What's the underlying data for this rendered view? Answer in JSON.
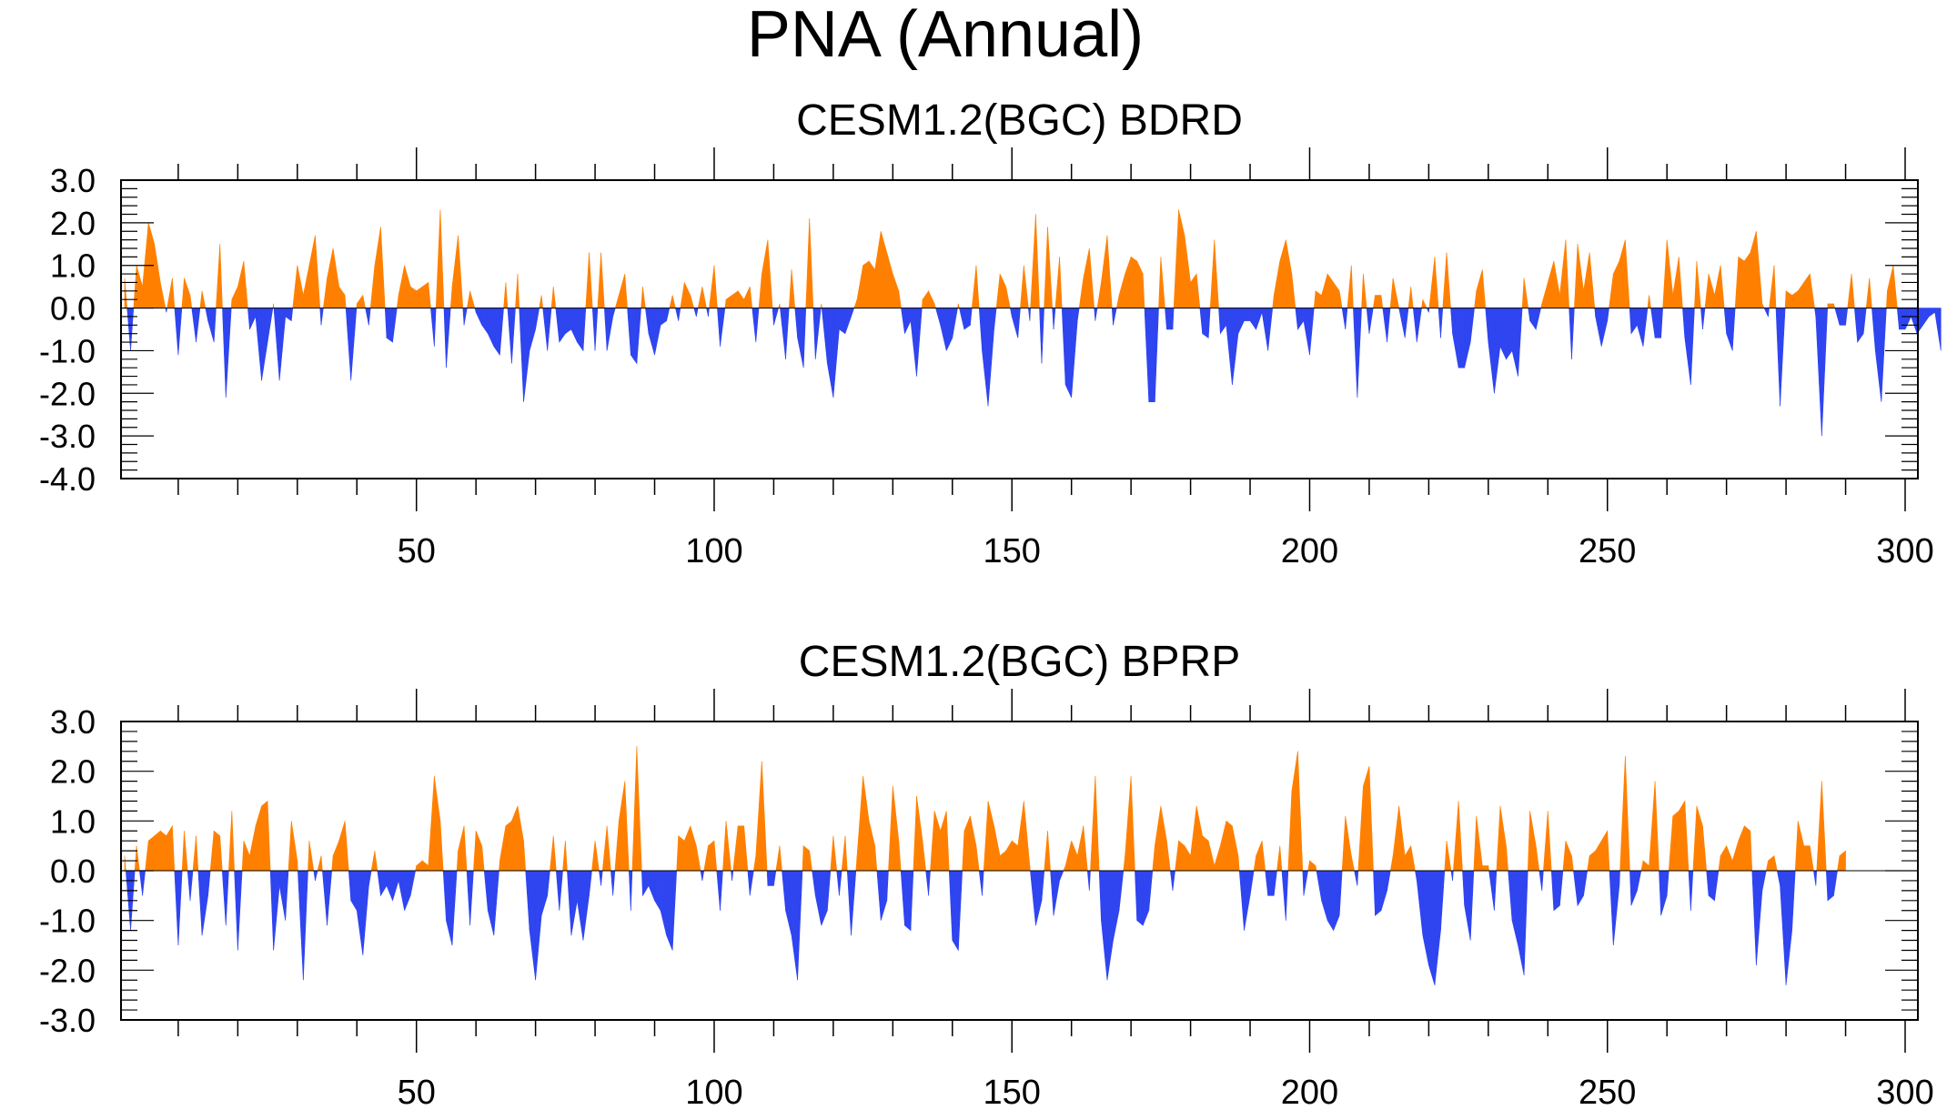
{
  "title": "PNA (Annual)",
  "colors": {
    "positive": "#ff8000",
    "negative": "#2f45f0",
    "axis": "#000000"
  },
  "chart_data": [
    {
      "type": "area",
      "title": "CESM1.2(BGC) BDRD",
      "xlim": [
        1,
        300
      ],
      "ylim": [
        -4.0,
        3.0
      ],
      "xticks": [
        50,
        100,
        150,
        200,
        250,
        300
      ],
      "xtick_labels": [
        "50",
        "100",
        "150",
        "200",
        "250",
        "300"
      ],
      "yticks": [
        3.0,
        2.0,
        1.0,
        0.0,
        -1.0,
        -2.0,
        -3.0,
        -4.0
      ],
      "ytick_labels": [
        "3.0",
        "2.0",
        "1.0",
        "0.0",
        "-1.0",
        "-2.0",
        "-3.0",
        "-4.0"
      ],
      "y": [
        0.7,
        -1.0,
        1.0,
        0.5,
        2.0,
        1.5,
        0.6,
        -0.1,
        0.7,
        -1.1,
        0.7,
        0.3,
        -0.8,
        0.4,
        -0.3,
        -0.8,
        1.5,
        -2.1,
        0.2,
        0.5,
        1.1,
        -0.5,
        -0.2,
        -1.7,
        -0.8,
        0.1,
        -1.7,
        -0.2,
        -0.3,
        1.0,
        0.3,
        1.0,
        1.7,
        -0.4,
        0.7,
        1.4,
        0.5,
        0.3,
        -1.7,
        0.1,
        0.3,
        -0.4,
        1.0,
        1.9,
        -0.7,
        -0.8,
        0.3,
        1.0,
        0.5,
        0.4,
        0.5,
        0.6,
        -0.9,
        2.3,
        -1.4,
        0.5,
        1.7,
        -0.4,
        0.4,
        -0.1,
        -0.4,
        -0.6,
        -0.9,
        -1.1,
        0.6,
        -1.3,
        0.8,
        -2.2,
        -1.0,
        -0.5,
        0.3,
        -1.0,
        0.5,
        -0.8,
        -0.6,
        -0.5,
        -0.8,
        -1.0,
        1.3,
        -1.0,
        1.3,
        -1.0,
        -0.2,
        0.3,
        0.8,
        -1.1,
        -1.3,
        0.5,
        -0.6,
        -1.1,
        -0.4,
        -0.3,
        0.3,
        -0.3,
        0.6,
        0.3,
        -0.2,
        0.5,
        -0.2,
        1.0,
        -0.9,
        0.2,
        0.3,
        0.4,
        0.2,
        0.5,
        -0.8,
        0.8,
        1.6,
        -0.4,
        0.1,
        -1.2,
        0.9,
        -0.7,
        -1.4,
        2.1,
        -1.2,
        0.1,
        -1.3,
        -2.1,
        -0.5,
        -0.6,
        -0.2,
        0.2,
        1.0,
        1.1,
        0.9,
        1.8,
        1.3,
        0.8,
        0.4,
        -0.6,
        -0.3,
        -1.6,
        0.2,
        0.4,
        0.1,
        -0.4,
        -1.0,
        -0.7,
        0.1,
        -0.5,
        -0.4,
        1.0,
        -1.0,
        -2.3,
        -0.5,
        0.8,
        0.5,
        -0.2,
        -0.7,
        1.0,
        -0.3,
        2.2,
        -1.3,
        1.9,
        -0.5,
        1.2,
        -1.8,
        -2.1,
        -0.3,
        0.7,
        1.4,
        -0.3,
        0.6,
        1.7,
        -0.4,
        0.3,
        0.8,
        1.2,
        1.1,
        0.8,
        -2.2,
        -2.2,
        1.2,
        -0.5,
        -0.5,
        2.3,
        1.7,
        0.6,
        0.8,
        -0.6,
        -0.7,
        1.6,
        -0.6,
        -0.4,
        -1.8,
        -0.6,
        -0.3,
        -0.3,
        -0.5,
        -0.1,
        -1.0,
        0.3,
        1.1,
        1.6,
        0.8,
        -0.5,
        -0.3,
        -1.1,
        0.4,
        0.3,
        0.8,
        0.6,
        0.4,
        -0.5,
        1.0,
        -2.1,
        0.8,
        -0.6,
        0.3,
        0.3,
        -0.8,
        0.7,
        0.0,
        -0.7,
        0.5,
        -0.8,
        0.2,
        -0.1,
        1.2,
        -0.7,
        1.3,
        -0.6,
        -1.4,
        -1.4,
        -0.8,
        0.4,
        0.9,
        -0.8,
        -2.0,
        -0.9,
        -1.2,
        -1.0,
        -1.6,
        0.7,
        -0.3,
        -0.5,
        0.1,
        0.6,
        1.1,
        0.3,
        1.6,
        -1.2,
        1.5,
        0.4,
        1.3,
        -0.2,
        -0.9,
        -0.3,
        0.8,
        1.1,
        1.6,
        -0.6,
        -0.4,
        -0.9,
        0.3,
        -0.7,
        -0.7,
        1.6,
        0.3,
        1.2,
        -0.7,
        -1.8,
        1.1,
        -0.5,
        0.8,
        0.3,
        1.0,
        -0.6,
        -1.0,
        1.2,
        1.1,
        1.3,
        1.8,
        0.1,
        -0.2,
        1.0,
        -2.3,
        0.4,
        0.3,
        0.4,
        0.6,
        0.8,
        -0.2,
        -3.0,
        0.1,
        0.1,
        -0.4,
        -0.4,
        0.8,
        -0.8,
        -0.6,
        0.7,
        -1.0,
        -2.2,
        0.4,
        1.0,
        -0.5,
        -0.5,
        -0.2,
        -0.6,
        -0.4,
        -0.2,
        -0.1,
        -1.0
      ]
    },
    {
      "type": "area",
      "title": "CESM1.2(BGC) BPRP",
      "xlim": [
        1,
        300
      ],
      "ylim": [
        -3.0,
        3.0
      ],
      "xticks": [
        50,
        100,
        150,
        200,
        250,
        300
      ],
      "xtick_labels": [
        "50",
        "100",
        "150",
        "200",
        "250",
        "300"
      ],
      "yticks": [
        3.0,
        2.0,
        1.0,
        0.0,
        -1.0,
        -2.0,
        -3.0
      ],
      "ytick_labels": [
        "3.0",
        "2.0",
        "1.0",
        "0.0",
        "-1.0",
        "-2.0",
        "-3.0"
      ],
      "y": [
        0.3,
        -1.2,
        0.5,
        -0.5,
        0.6,
        0.7,
        0.8,
        0.7,
        0.9,
        -1.5,
        0.8,
        -0.6,
        0.7,
        -1.3,
        -0.5,
        0.8,
        0.7,
        -1.1,
        1.2,
        -1.6,
        0.6,
        0.3,
        0.9,
        1.3,
        1.4,
        -1.6,
        -0.3,
        -1.0,
        1.0,
        0.2,
        -2.2,
        0.6,
        -0.2,
        0.3,
        -1.1,
        0.3,
        0.6,
        1.0,
        -0.6,
        -0.8,
        -1.7,
        -0.3,
        0.4,
        -0.5,
        -0.3,
        -0.6,
        -0.2,
        -0.8,
        -0.5,
        0.1,
        0.2,
        0.1,
        1.9,
        1.0,
        -1.0,
        -1.5,
        0.4,
        0.9,
        -1.1,
        0.8,
        0.5,
        -0.8,
        -1.3,
        0.2,
        0.9,
        1.0,
        1.3,
        0.6,
        -1.2,
        -2.2,
        -0.9,
        -0.5,
        0.7,
        -0.8,
        0.6,
        -1.3,
        -0.6,
        -1.4,
        -0.5,
        0.6,
        -0.3,
        0.9,
        -0.5,
        1.0,
        1.8,
        -0.8,
        2.5,
        -0.5,
        -0.3,
        -0.6,
        -0.8,
        -1.3,
        -1.6,
        0.7,
        0.6,
        0.9,
        0.5,
        -0.2,
        0.5,
        0.6,
        -0.8,
        1.0,
        -0.2,
        0.9,
        0.9,
        -0.5,
        0.3,
        2.2,
        -0.3,
        -0.3,
        0.5,
        -0.8,
        -1.3,
        -2.2,
        0.5,
        0.4,
        -0.5,
        -1.1,
        -0.8,
        0.7,
        -0.5,
        0.7,
        -1.3,
        0.3,
        1.9,
        1.0,
        0.5,
        -1.0,
        -0.6,
        1.7,
        0.6,
        -1.1,
        -1.2,
        1.5,
        0.6,
        -0.5,
        1.2,
        0.8,
        1.2,
        -1.4,
        -1.6,
        0.8,
        1.1,
        0.5,
        -0.5,
        1.4,
        0.9,
        0.3,
        0.4,
        0.6,
        0.5,
        1.4,
        0.1,
        -1.1,
        -0.6,
        0.8,
        -0.9,
        -0.2,
        0.1,
        0.6,
        0.3,
        0.9,
        -0.4,
        1.9,
        -1.0,
        -2.2,
        -1.4,
        -0.8,
        0.3,
        1.9,
        -1.0,
        -1.1,
        -0.8,
        0.5,
        1.3,
        0.6,
        -0.4,
        0.6,
        0.5,
        0.3,
        1.3,
        0.7,
        0.6,
        0.1,
        0.5,
        1.0,
        0.9,
        0.3,
        -1.2,
        -0.5,
        0.3,
        0.6,
        -0.5,
        -0.5,
        0.5,
        -1.0,
        1.6,
        2.4,
        -0.5,
        0.2,
        0.1,
        -0.6,
        -1.0,
        -1.2,
        -0.9,
        1.1,
        0.3,
        -0.3,
        1.7,
        2.1,
        -0.9,
        -0.8,
        -0.4,
        0.3,
        1.3,
        0.3,
        0.5,
        -0.2,
        -1.3,
        -1.9,
        -2.3,
        -1.2,
        0.6,
        -0.2,
        1.4,
        -0.7,
        -1.4,
        1.1,
        0.1,
        0.1,
        -0.8,
        1.3,
        0.5,
        -1.0,
        -1.5,
        -2.1,
        1.2,
        0.5,
        -0.4,
        1.2,
        -0.8,
        -0.7,
        0.6,
        0.3,
        -0.7,
        -0.5,
        0.3,
        0.4,
        0.6,
        0.8,
        -1.5,
        -0.3,
        2.3,
        -0.7,
        -0.4,
        0.2,
        0.1,
        1.8,
        -0.9,
        -0.5,
        1.1,
        1.2,
        1.4,
        -0.8,
        1.3,
        0.9,
        -0.5,
        -0.6,
        0.3,
        0.5,
        0.2,
        0.6,
        0.9,
        0.8,
        -1.9,
        -0.4,
        0.2,
        0.3,
        -0.3,
        -2.3,
        -1.2,
        1.0,
        0.5,
        0.5,
        -0.3,
        1.8,
        -0.6,
        -0.5,
        0.3,
        0.4
      ]
    }
  ]
}
